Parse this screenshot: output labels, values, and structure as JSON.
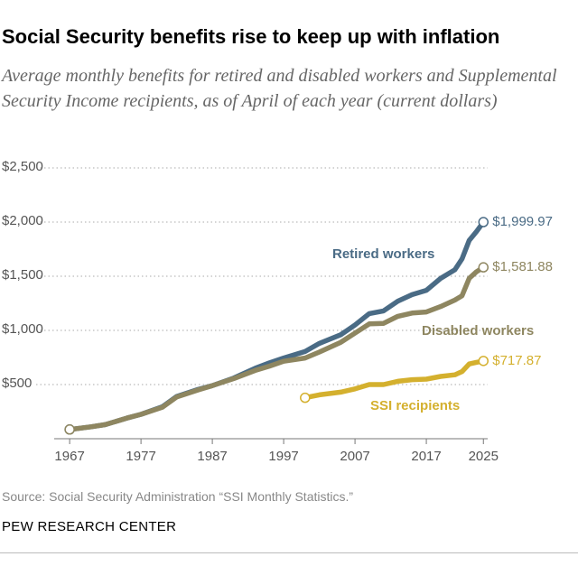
{
  "chart_data": {
    "type": "line",
    "title": "Social Security benefits rise to keep up with inflation",
    "subtitle": "Average monthly benefits for retired and disabled workers and Supplemental Security Income recipients, as of April of each year (current dollars)",
    "source": "Source: Social Security Administration “SSI Monthly Statistics.”",
    "credit": "PEW RESEARCH CENTER",
    "x": [
      1967,
      1970,
      1972,
      1975,
      1977,
      1980,
      1982,
      1985,
      1987,
      1990,
      1993,
      1995,
      1997,
      2000,
      2002,
      2005,
      2007,
      2009,
      2011,
      2013,
      2015,
      2017,
      2019,
      2021,
      2022,
      2023,
      2024,
      2025
    ],
    "series": [
      {
        "name": "Retired workers",
        "color": "#4a6b85",
        "values": [
          85,
          110,
          130,
          190,
          225,
          295,
          390,
          455,
          490,
          560,
          650,
          700,
          745,
          805,
          880,
          960,
          1050,
          1155,
          1180,
          1270,
          1330,
          1370,
          1480,
          1560,
          1660,
          1830,
          1910,
          1999.97
        ],
        "value_labels": [
          null,
          null,
          null,
          null,
          null,
          null,
          null,
          null,
          null,
          null,
          null,
          null,
          null,
          null,
          null,
          null,
          null,
          null,
          null,
          null,
          null,
          null,
          null,
          null,
          null,
          null,
          null,
          "$1,999.97"
        ]
      },
      {
        "name": "Disabled workers",
        "color": "#8e8660",
        "values": [
          85,
          110,
          130,
          190,
          225,
          290,
          385,
          450,
          490,
          555,
          630,
          670,
          715,
          745,
          800,
          890,
          975,
          1060,
          1065,
          1130,
          1160,
          1170,
          1220,
          1280,
          1320,
          1480,
          1540,
          1581.88
        ],
        "value_labels": [
          null,
          null,
          null,
          null,
          null,
          null,
          null,
          null,
          null,
          null,
          null,
          null,
          null,
          null,
          null,
          null,
          null,
          null,
          null,
          null,
          null,
          null,
          null,
          null,
          null,
          null,
          null,
          "$1,581.88"
        ]
      },
      {
        "name": "SSI recipients",
        "color": "#d4b02e",
        "values": [
          null,
          null,
          null,
          null,
          null,
          null,
          null,
          null,
          null,
          null,
          null,
          null,
          null,
          378,
          405,
          430,
          460,
          500,
          500,
          530,
          545,
          550,
          575,
          590,
          620,
          690,
          705,
          717.87
        ],
        "value_labels": [
          null,
          null,
          null,
          null,
          null,
          null,
          null,
          null,
          null,
          null,
          null,
          null,
          null,
          null,
          null,
          null,
          null,
          null,
          null,
          null,
          null,
          null,
          null,
          null,
          null,
          null,
          null,
          "$717.87"
        ]
      }
    ],
    "xlim": [
      1962.3,
      2025.6
    ],
    "xticks": [
      1967,
      1977,
      1987,
      1997,
      2007,
      2017,
      2025
    ],
    "ylim": [
      0,
      2500
    ],
    "yticks": [
      {
        "value": 500,
        "label": "$500"
      },
      {
        "value": 1000,
        "label": "$1,000"
      },
      {
        "value": 1500,
        "label": "$1,500"
      },
      {
        "value": 2000,
        "label": "$2,000"
      },
      {
        "value": 2500,
        "label": "$2,500"
      }
    ],
    "grid": true
  }
}
